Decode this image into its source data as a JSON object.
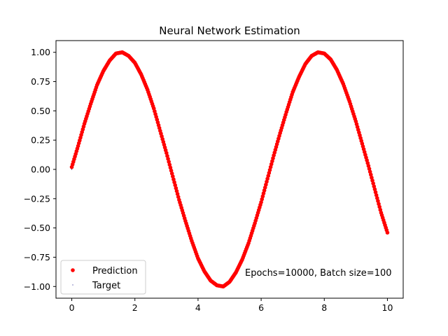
{
  "chart_data": {
    "type": "scatter",
    "title": "Neural Network Estimation",
    "xlabel": "",
    "ylabel": "",
    "xlim": [
      -0.5,
      10.5
    ],
    "ylim": [
      -1.1,
      1.1
    ],
    "x_ticks": [
      0,
      2,
      4,
      6,
      8,
      10
    ],
    "x_tick_labels": [
      "0",
      "2",
      "4",
      "6",
      "8",
      "10"
    ],
    "y_ticks": [
      -1.0,
      -0.75,
      -0.5,
      -0.25,
      0.0,
      0.25,
      0.5,
      0.75,
      1.0
    ],
    "y_tick_labels": [
      "−1.00",
      "−0.75",
      "−0.50",
      "−0.25",
      "0.00",
      "0.25",
      "0.50",
      "0.75",
      "1.00"
    ],
    "grid": false,
    "legend": {
      "location": "lower-left",
      "entries": [
        "Prediction",
        "Target"
      ]
    },
    "annotation": "Epochs=10000, Batch size=100",
    "series": [
      {
        "name": "Prediction",
        "color": "#ff0000",
        "marker": "circle",
        "x": [
          0.0,
          0.2,
          0.4,
          0.6,
          0.8,
          1.0,
          1.2,
          1.4,
          1.6,
          1.8,
          2.0,
          2.2,
          2.4,
          2.6,
          2.8,
          3.0,
          3.2,
          3.4,
          3.6,
          3.8,
          4.0,
          4.2,
          4.4,
          4.6,
          4.8,
          5.0,
          5.2,
          5.4,
          5.6,
          5.8,
          6.0,
          6.2,
          6.4,
          6.6,
          6.8,
          7.0,
          7.2,
          7.4,
          7.6,
          7.8,
          8.0,
          8.2,
          8.4,
          8.6,
          8.8,
          9.0,
          9.2,
          9.4,
          9.6,
          9.8,
          10.0
        ],
        "y": [
          0.02,
          0.2,
          0.39,
          0.56,
          0.72,
          0.84,
          0.93,
          0.99,
          1.0,
          0.97,
          0.91,
          0.81,
          0.68,
          0.52,
          0.33,
          0.14,
          -0.06,
          -0.26,
          -0.44,
          -0.61,
          -0.76,
          -0.87,
          -0.95,
          -0.99,
          -1.0,
          -0.96,
          -0.88,
          -0.77,
          -0.63,
          -0.46,
          -0.28,
          -0.08,
          0.12,
          0.31,
          0.49,
          0.66,
          0.79,
          0.9,
          0.97,
          1.0,
          0.99,
          0.94,
          0.85,
          0.73,
          0.58,
          0.41,
          0.22,
          0.03,
          -0.17,
          -0.37,
          -0.54
        ]
      },
      {
        "name": "Target",
        "color": "#000080",
        "marker": "pixel",
        "x": [
          0.0,
          0.2,
          0.4,
          0.6,
          0.8,
          1.0,
          1.2,
          1.4,
          1.6,
          1.8,
          2.0,
          2.2,
          2.4,
          2.6,
          2.8,
          3.0,
          3.2,
          3.4,
          3.6,
          3.8,
          4.0,
          4.2,
          4.4,
          4.6,
          4.8,
          5.0,
          5.2,
          5.4,
          5.6,
          5.8,
          6.0,
          6.2,
          6.4,
          6.6,
          6.8,
          7.0,
          7.2,
          7.4,
          7.6,
          7.8,
          8.0,
          8.2,
          8.4,
          8.6,
          8.8,
          9.0,
          9.2,
          9.4,
          9.6,
          9.8,
          10.0
        ],
        "y": [
          0.0,
          0.2,
          0.39,
          0.56,
          0.72,
          0.84,
          0.93,
          0.99,
          1.0,
          0.97,
          0.91,
          0.81,
          0.68,
          0.52,
          0.33,
          0.14,
          -0.06,
          -0.26,
          -0.44,
          -0.61,
          -0.76,
          -0.87,
          -0.95,
          -0.99,
          -1.0,
          -0.96,
          -0.88,
          -0.77,
          -0.63,
          -0.46,
          -0.28,
          -0.08,
          0.12,
          0.31,
          0.49,
          0.66,
          0.79,
          0.9,
          0.97,
          1.0,
          0.99,
          0.94,
          0.85,
          0.73,
          0.58,
          0.41,
          0.22,
          0.03,
          -0.17,
          -0.37,
          -0.54
        ]
      }
    ]
  }
}
